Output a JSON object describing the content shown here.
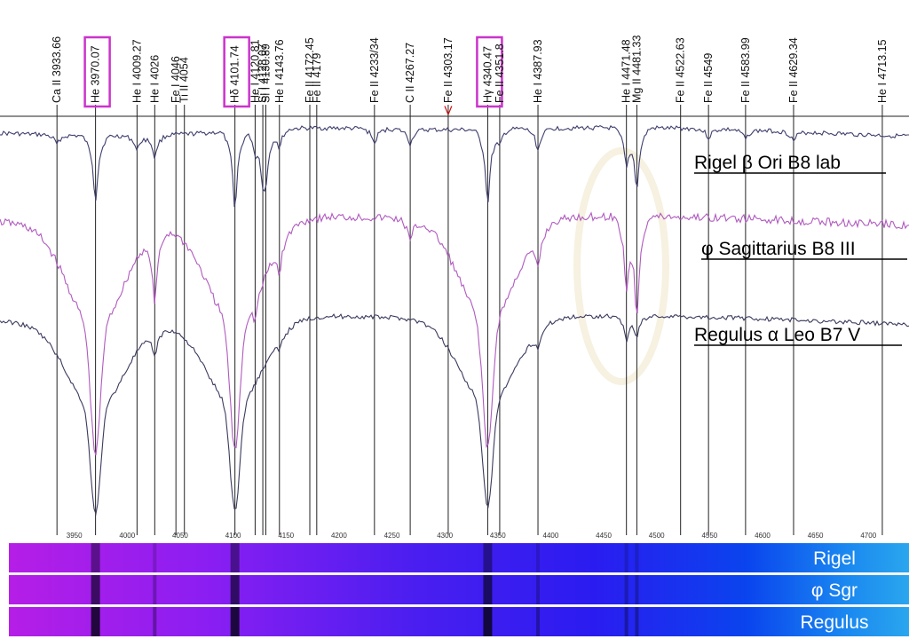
{
  "chart_data": {
    "type": "line",
    "title": "",
    "xlabel": "",
    "ylabel": "",
    "xlim": [
      3905,
      4735
    ],
    "x_ticks": [
      3950,
      4000,
      4050,
      4100,
      4150,
      4200,
      4250,
      4300,
      4350,
      4400,
      4450,
      4500,
      4550,
      4600,
      4650,
      4700
    ],
    "grid": false,
    "marker": "V",
    "line_ids": [
      {
        "label": "Ca II 3933.66",
        "wavelength": 3933.66,
        "highlight": false
      },
      {
        "label": "He 3970.07",
        "wavelength": 3970.07,
        "highlight": true
      },
      {
        "label": "He I 4009.27",
        "wavelength": 4009.27,
        "highlight": false
      },
      {
        "label": "He I 4026",
        "wavelength": 4026,
        "highlight": false
      },
      {
        "label": "Fe I 4046",
        "wavelength": 4046,
        "highlight": false
      },
      {
        "label": "Ti II 4054",
        "wavelength": 4054,
        "highlight": false
      },
      {
        "label": "Hδ 4101.74",
        "wavelength": 4101.74,
        "highlight": true
      },
      {
        "label": "He I 4120.81",
        "wavelength": 4120.81,
        "highlight": false
      },
      {
        "label": "Si I 4128.07",
        "wavelength": 4128.07,
        "highlight": false
      },
      {
        "label": "Si I 4130.89",
        "wavelength": 4130.89,
        "highlight": false
      },
      {
        "label": "He I 4143.76",
        "wavelength": 4143.76,
        "highlight": false
      },
      {
        "label": "Fe II 4172.45",
        "wavelength": 4172.45,
        "highlight": false
      },
      {
        "label": "Fe II 4179",
        "wavelength": 4179,
        "highlight": false
      },
      {
        "label": "Fe II 4233/34",
        "wavelength": 4233.5,
        "highlight": false
      },
      {
        "label": "C II 4267.27",
        "wavelength": 4267.27,
        "highlight": false
      },
      {
        "label": "Fe II 4303.17",
        "wavelength": 4303.17,
        "highlight": false
      },
      {
        "label": "Hγ 4340.47",
        "wavelength": 4340.47,
        "highlight": true
      },
      {
        "label": "Fe II 4351.8",
        "wavelength": 4351.8,
        "highlight": false
      },
      {
        "label": "He I 4387.93",
        "wavelength": 4387.93,
        "highlight": false
      },
      {
        "label": "He I 4471.48",
        "wavelength": 4471.48,
        "highlight": false
      },
      {
        "label": "Mg II 4481.33",
        "wavelength": 4481.33,
        "highlight": false
      },
      {
        "label": "Fe II 4522.63",
        "wavelength": 4522.63,
        "highlight": false
      },
      {
        "label": "Fe II 4549",
        "wavelength": 4549,
        "highlight": false
      },
      {
        "label": "Fe II 4583.99",
        "wavelength": 4583.99,
        "highlight": false
      },
      {
        "label": "Fe II 4629.34",
        "wavelength": 4629.34,
        "highlight": false
      },
      {
        "label": "He I 4713.15",
        "wavelength": 4713.15,
        "highlight": false
      }
    ],
    "series": [
      {
        "name": "Rigel β Ori  B8 lab",
        "color": "#3e3e6e",
        "offset": 0.72,
        "features": [
          [
            3933.66,
            0.05
          ],
          [
            3970.07,
            0.35
          ],
          [
            4009.27,
            0.08
          ],
          [
            4026,
            0.12
          ],
          [
            4101.74,
            0.42
          ],
          [
            4120.81,
            0.1
          ],
          [
            4128.07,
            0.2
          ],
          [
            4130.89,
            0.22
          ],
          [
            4143.76,
            0.1
          ],
          [
            4233.5,
            0.08
          ],
          [
            4267.27,
            0.08
          ],
          [
            4340.47,
            0.4
          ],
          [
            4351.8,
            0.08
          ],
          [
            4387.93,
            0.12
          ],
          [
            4471.48,
            0.2
          ],
          [
            4481.33,
            0.32
          ],
          [
            4549,
            0.05
          ],
          [
            4583.99,
            0.05
          ],
          [
            4629.34,
            0.05
          ]
        ]
      },
      {
        "name": "φ Sagittarius B8 III",
        "color": "#b05abf",
        "offset": 0.42,
        "features": [
          [
            3970.07,
            0.85
          ],
          [
            4026,
            0.25
          ],
          [
            4101.74,
            0.85
          ],
          [
            4120.81,
            0.08
          ],
          [
            4143.76,
            0.1
          ],
          [
            4267.27,
            0.08
          ],
          [
            4340.47,
            0.85
          ],
          [
            4387.93,
            0.12
          ],
          [
            4471.48,
            0.25
          ],
          [
            4481.33,
            0.35
          ]
        ]
      },
      {
        "name": "Regulus α Leo B7 V",
        "color": "#3a3a5e",
        "offset": 0.0,
        "features": [
          [
            3970.07,
            1.0
          ],
          [
            4026,
            0.12
          ],
          [
            4101.74,
            1.0
          ],
          [
            4143.76,
            0.05
          ],
          [
            4340.47,
            1.0
          ],
          [
            4387.93,
            0.08
          ],
          [
            4471.48,
            0.12
          ],
          [
            4481.33,
            0.1
          ]
        ]
      }
    ],
    "strips": [
      {
        "label": "Rigel",
        "depth": 0.55
      },
      {
        "label": "φ Sgr",
        "depth": 0.8
      },
      {
        "label": "Regulus",
        "depth": 1.0
      }
    ],
    "strip_features": [
      3970.07,
      4101.74,
      4340.47,
      4026,
      4471.48,
      4481.33,
      4387.93
    ]
  }
}
